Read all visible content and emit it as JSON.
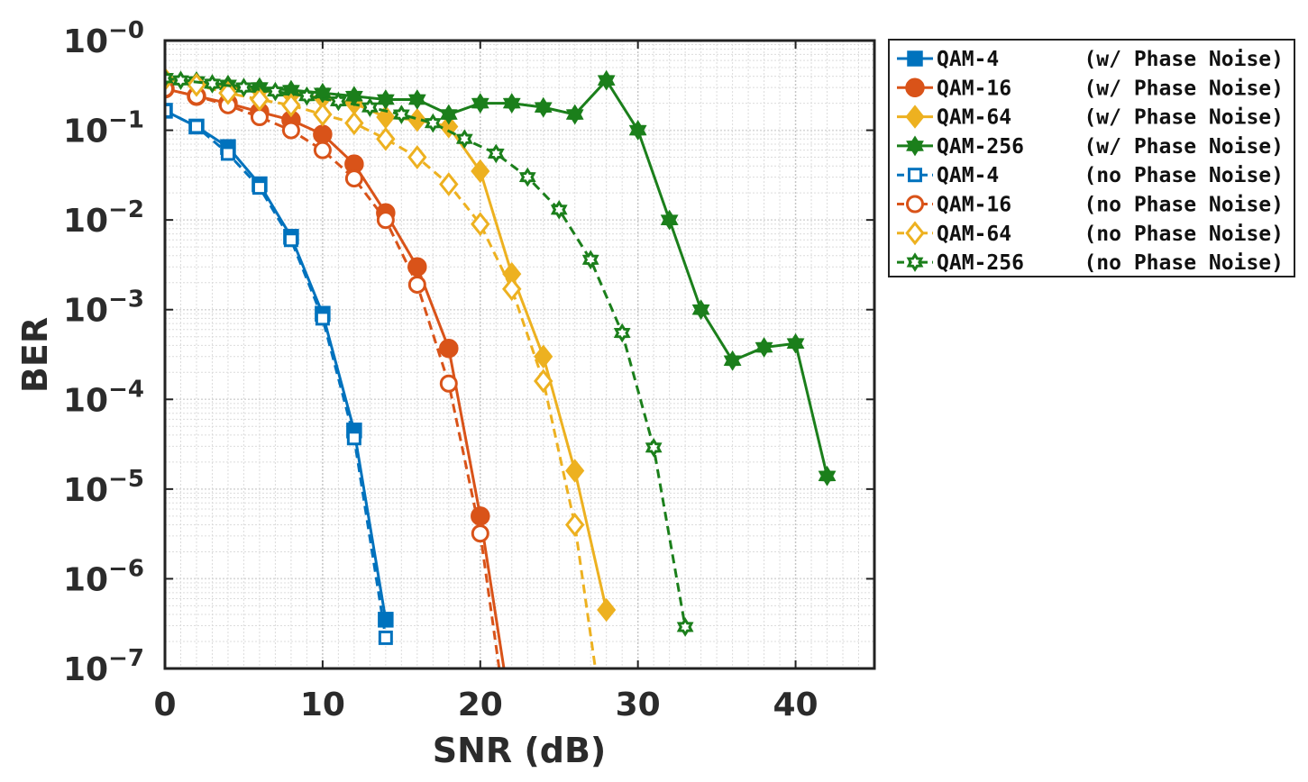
{
  "chart_data": {
    "type": "line",
    "xlabel": "SNR (dB)",
    "ylabel": "BER",
    "yscale": "log",
    "xlim": [
      0,
      45
    ],
    "ylim": [
      1e-07,
      1
    ],
    "xticks": [
      0,
      10,
      20,
      30,
      40
    ],
    "xtick_labels": [
      "0",
      "10",
      "20",
      "30",
      "40"
    ],
    "ytick_exponents": [
      "-0",
      "-1",
      "-2",
      "-3",
      "-4",
      "-5",
      "-6",
      "-7"
    ],
    "ytick_base": "10",
    "grid": true,
    "legend_position": "outside-right-top",
    "series": [
      {
        "name": "QAM-4",
        "note": "(w/ Phase Noise)",
        "color": "#0072BD",
        "style": "solid",
        "marker": "square",
        "filled": true,
        "x": [
          0,
          2,
          4,
          6,
          8,
          10,
          12,
          14
        ],
        "y": [
          0.165,
          0.11,
          0.065,
          0.025,
          0.0065,
          0.0009,
          4.5e-05,
          3.5e-07
        ]
      },
      {
        "name": "QAM-16",
        "note": "(w/ Phase Noise)",
        "color": "#D95319",
        "style": "solid",
        "marker": "circle",
        "filled": true,
        "x": [
          0,
          2,
          4,
          6,
          8,
          10,
          12,
          14,
          16,
          18,
          20,
          21.5
        ],
        "y": [
          0.29,
          0.24,
          0.2,
          0.16,
          0.13,
          0.09,
          0.042,
          0.012,
          0.003,
          0.00037,
          5e-06,
          1e-07
        ]
      },
      {
        "name": "QAM-64",
        "note": "(w/ Phase Noise)",
        "color": "#EDB120",
        "style": "solid",
        "marker": "diamond",
        "filled": true,
        "x": [
          0,
          2,
          4,
          6,
          8,
          10,
          12,
          14,
          16,
          18,
          20,
          22,
          24,
          26,
          28
        ],
        "y": [
          0.37,
          0.33,
          0.3,
          0.28,
          0.25,
          0.23,
          0.2,
          0.14,
          0.13,
          0.11,
          0.035,
          0.0025,
          0.0003,
          1.6e-05,
          4.5e-07
        ]
      },
      {
        "name": "QAM-256",
        "note": "(w/ Phase Noise)",
        "color": "#1B7F1B",
        "style": "solid",
        "marker": "hexagram",
        "filled": true,
        "x": [
          0,
          2,
          4,
          6,
          8,
          10,
          12,
          14,
          16,
          18,
          20,
          22,
          24,
          26,
          28,
          30,
          32,
          34,
          36,
          38,
          40,
          42
        ],
        "y": [
          0.38,
          0.35,
          0.32,
          0.3,
          0.28,
          0.26,
          0.24,
          0.22,
          0.22,
          0.15,
          0.2,
          0.2,
          0.18,
          0.15,
          0.36,
          0.1,
          0.01,
          0.001,
          0.00027,
          0.00038,
          0.00042,
          1.4e-05
        ]
      },
      {
        "name": "QAM-4",
        "note": "(no Phase Noise)",
        "color": "#0072BD",
        "style": "dashed",
        "marker": "square",
        "filled": false,
        "x": [
          0,
          2,
          4,
          6,
          8,
          10,
          12,
          14
        ],
        "y": [
          0.165,
          0.11,
          0.055,
          0.023,
          0.006,
          0.0008,
          3.7e-05,
          2.2e-07
        ]
      },
      {
        "name": "QAM-16",
        "note": "(no Phase Noise)",
        "color": "#D95319",
        "style": "dashed",
        "marker": "circle",
        "filled": false,
        "x": [
          0,
          2,
          4,
          6,
          8,
          10,
          12,
          14,
          16,
          18,
          20,
          21.2
        ],
        "y": [
          0.29,
          0.24,
          0.19,
          0.14,
          0.1,
          0.06,
          0.029,
          0.01,
          0.0019,
          0.00015,
          3.2e-06,
          1e-07
        ]
      },
      {
        "name": "QAM-64",
        "note": "(no Phase Noise)",
        "color": "#EDB120",
        "style": "dashed",
        "marker": "diamond",
        "filled": false,
        "x": [
          0,
          2,
          4,
          6,
          8,
          10,
          12,
          14,
          16,
          18,
          20,
          22,
          24,
          26,
          27.3
        ],
        "y": [
          0.37,
          0.32,
          0.26,
          0.22,
          0.19,
          0.15,
          0.12,
          0.08,
          0.05,
          0.025,
          0.009,
          0.0017,
          0.00016,
          4e-06,
          1e-07
        ]
      },
      {
        "name": "QAM-256",
        "note": "(no Phase Noise)",
        "color": "#1B7F1B",
        "style": "dashed",
        "marker": "hexagram",
        "filled": false,
        "x": [
          0,
          1,
          3,
          5,
          7,
          9,
          11,
          13,
          15,
          17,
          19,
          21,
          23,
          25,
          27,
          29,
          31,
          33
        ],
        "y": [
          0.38,
          0.36,
          0.33,
          0.3,
          0.27,
          0.24,
          0.21,
          0.18,
          0.15,
          0.12,
          0.08,
          0.055,
          0.03,
          0.013,
          0.0036,
          0.00055,
          2.9e-05,
          2.9e-07
        ]
      }
    ]
  }
}
